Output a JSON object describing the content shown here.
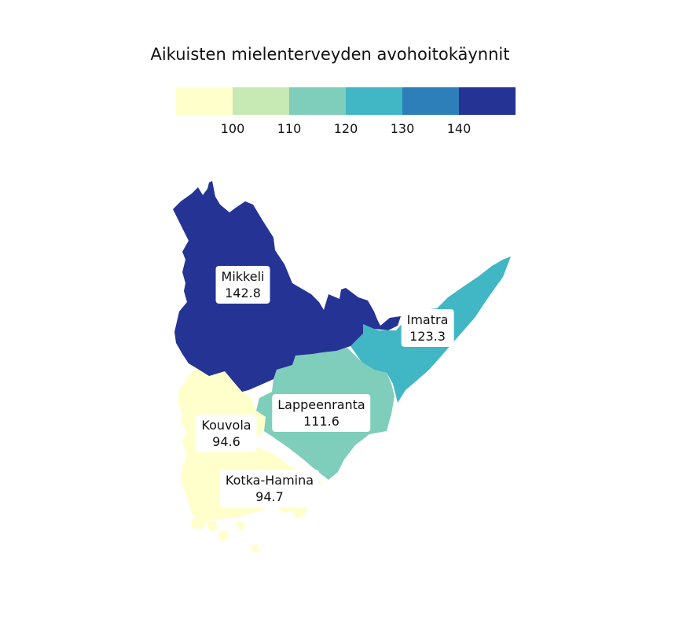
{
  "title": "Aikuisten mielenterveyden avohoitokäynnit",
  "legend": {
    "colors": [
      "#ffffcc",
      "#c7e9b4",
      "#7fcdbb",
      "#41b6c4",
      "#2c7fb8",
      "#253494"
    ],
    "breaks": [
      "100",
      "110",
      "120",
      "130",
      "140"
    ],
    "thresholds": [
      100,
      110,
      120,
      130,
      140
    ]
  },
  "regions": [
    {
      "name": "Mikkeli",
      "value": "142.8",
      "color": "#253494"
    },
    {
      "name": "Imatra",
      "value": "123.3",
      "color": "#41b6c4"
    },
    {
      "name": "Lappeenranta",
      "value": "111.6",
      "color": "#7fcdbb"
    },
    {
      "name": "Kouvola",
      "value": "94.6",
      "color": "#ffffcc"
    },
    {
      "name": "Kotka-Hamina",
      "value": "94.7",
      "color": "#ffffcc"
    }
  ]
}
